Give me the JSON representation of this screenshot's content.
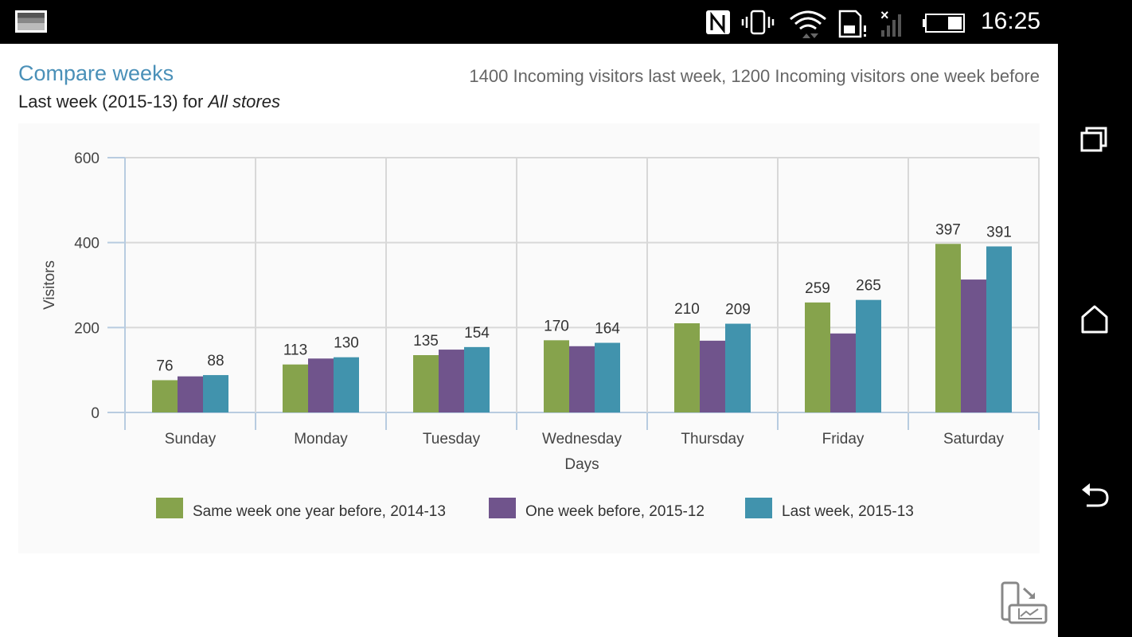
{
  "status_bar": {
    "time": "16:25",
    "icons": [
      "gallery-icon",
      "nfc-icon",
      "vibrate-icon",
      "wifi-icon",
      "sim-alert-icon",
      "signal-none-icon",
      "battery-icon"
    ]
  },
  "nav_bar": {
    "icons": [
      "recent-apps-icon",
      "home-icon",
      "back-icon"
    ]
  },
  "header": {
    "title": "Compare weeks",
    "subtitle_prefix": "Last week (2015-13) for ",
    "subtitle_store": "All stores",
    "summary": "1400 Incoming visitors last week, 1200 Incoming visitors one week before"
  },
  "colors": {
    "series1": "#86a34c",
    "series2": "#70548c",
    "series3": "#4193ad",
    "title": "#4a90b8"
  },
  "chart_data": {
    "type": "bar",
    "categories": [
      "Sunday",
      "Monday",
      "Tuesday",
      "Wednesday",
      "Thursday",
      "Friday",
      "Saturday"
    ],
    "series": [
      {
        "name": "Same week one year before, 2014-13",
        "values": [
          76,
          113,
          135,
          170,
          210,
          259,
          397
        ],
        "labels": [
          "76",
          "113",
          "135",
          "170",
          "210",
          "259",
          "397"
        ]
      },
      {
        "name": "One week before, 2015-12",
        "values": [
          85,
          127,
          148,
          156,
          169,
          186,
          313
        ],
        "labels": [
          "",
          "",
          "",
          "",
          "",
          "",
          ""
        ]
      },
      {
        "name": "Last week, 2015-13",
        "values": [
          88,
          130,
          154,
          164,
          209,
          265,
          391
        ],
        "labels": [
          "88",
          "130",
          "154",
          "164",
          "209",
          "265",
          "391"
        ]
      }
    ],
    "xlabel": "Days",
    "ylabel": "Visitors",
    "ylim": [
      0,
      600
    ],
    "yticks": [
      "0",
      "200",
      "400",
      "600"
    ],
    "grid": true,
    "legend_position": "bottom"
  }
}
